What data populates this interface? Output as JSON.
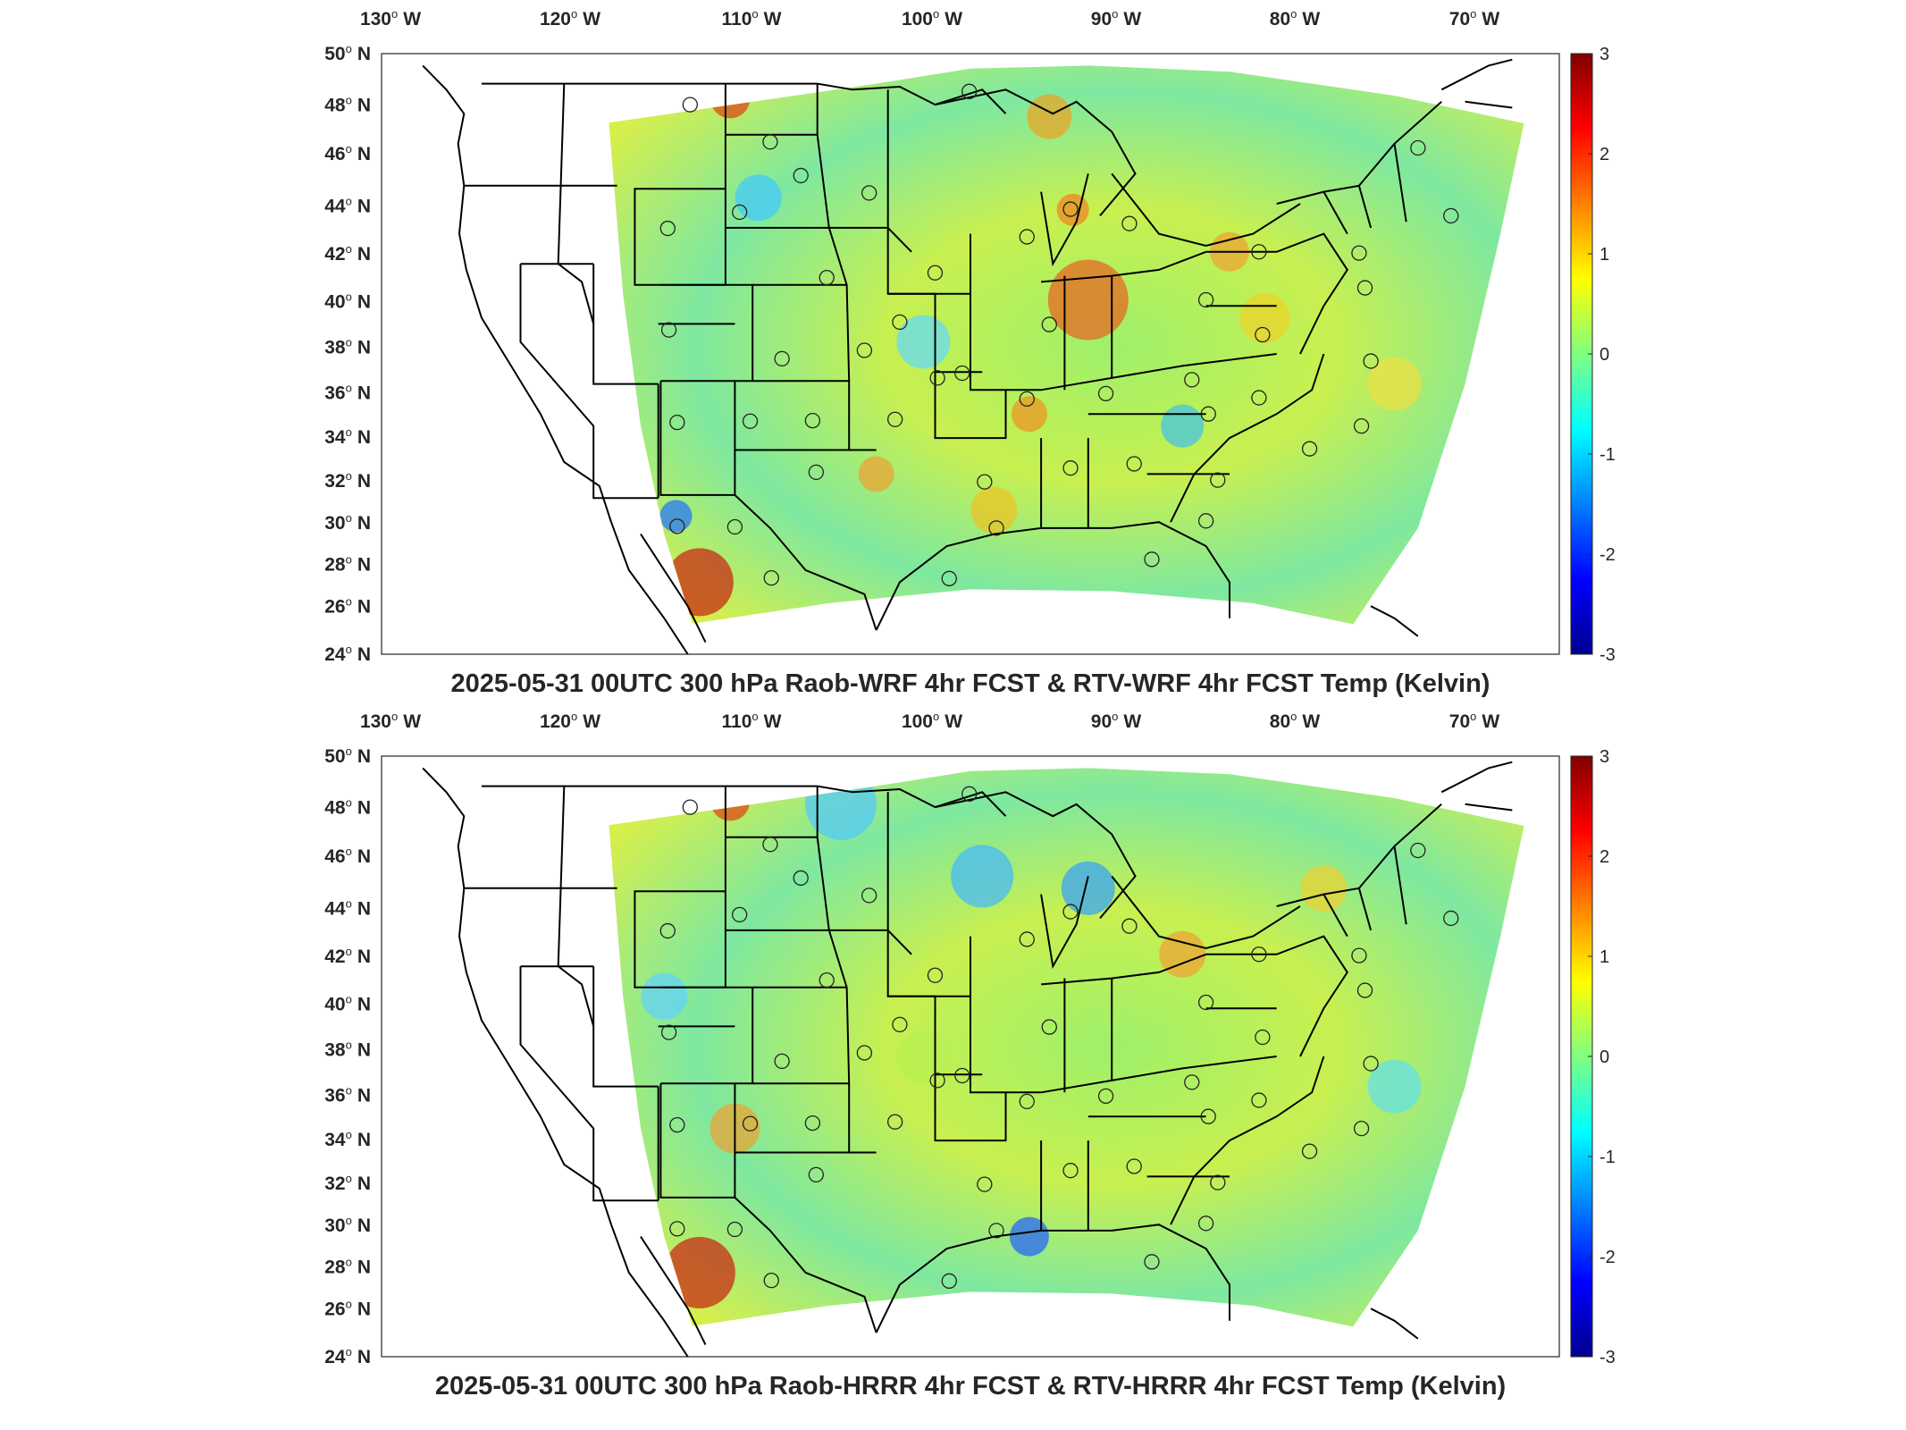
{
  "figure": {
    "lon_labels": [
      {
        "deg": "130",
        "hem": "W"
      },
      {
        "deg": "120",
        "hem": "W"
      },
      {
        "deg": "110",
        "hem": "W"
      },
      {
        "deg": "100",
        "hem": "W"
      },
      {
        "deg": "90",
        "hem": "W"
      },
      {
        "deg": "80",
        "hem": "W"
      },
      {
        "deg": "70",
        "hem": "W"
      }
    ],
    "lat_labels": [
      {
        "deg": "50",
        "hem": "N"
      },
      {
        "deg": "48",
        "hem": "N"
      },
      {
        "deg": "46",
        "hem": "N"
      },
      {
        "deg": "44",
        "hem": "N"
      },
      {
        "deg": "42",
        "hem": "N"
      },
      {
        "deg": "40",
        "hem": "N"
      },
      {
        "deg": "38",
        "hem": "N"
      },
      {
        "deg": "36",
        "hem": "N"
      },
      {
        "deg": "34",
        "hem": "N"
      },
      {
        "deg": "32",
        "hem": "N"
      },
      {
        "deg": "30",
        "hem": "N"
      },
      {
        "deg": "28",
        "hem": "N"
      },
      {
        "deg": "26",
        "hem": "N"
      },
      {
        "deg": "24",
        "hem": "N"
      }
    ],
    "colorbar": {
      "ticks": [
        "3",
        "2",
        "1",
        "0",
        "-1",
        "-2",
        "-3"
      ],
      "range": [
        -3,
        3
      ],
      "colormap": "jet",
      "colors": [
        "#00008f",
        "#0000ff",
        "#0080ff",
        "#00ffff",
        "#80ff80",
        "#ffff00",
        "#ff8000",
        "#ff0000",
        "#800000"
      ]
    },
    "panels": [
      {
        "title": "2025-05-31 00UTC 300 hPa Raob-WRF 4hr FCST & RTV-WRF 4hr FCST Temp (Kelvin)"
      },
      {
        "title": "2025-05-31 00UTC 300 hPa Raob-HRRR 4hr FCST & RTV-HRRR 4hr FCST Temp (Kelvin)"
      }
    ]
  }
}
